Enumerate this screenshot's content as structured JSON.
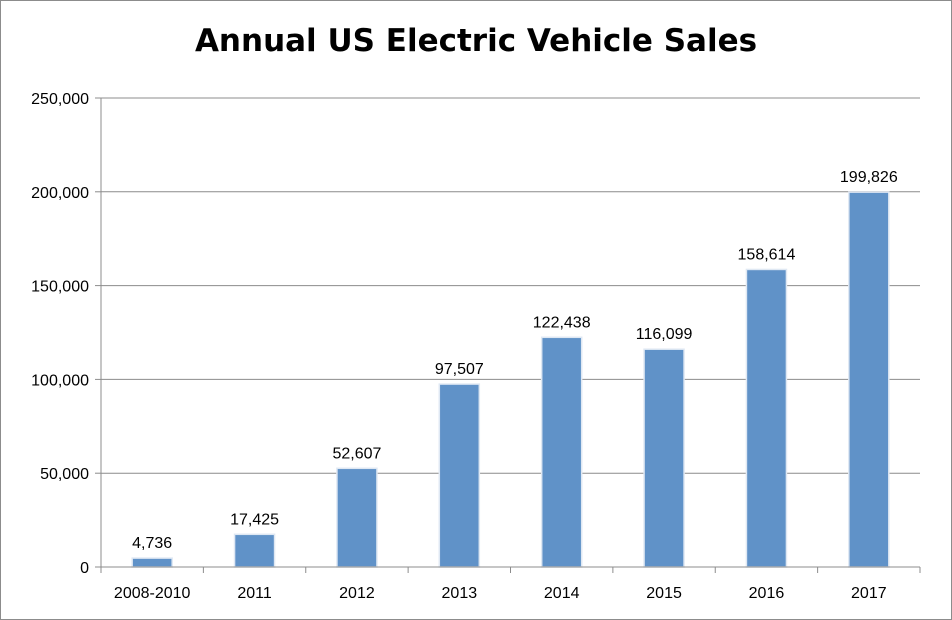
{
  "chart_data": {
    "type": "bar",
    "title": "Annual US Electric Vehicle Sales",
    "xlabel": "",
    "ylabel": "",
    "categories": [
      "2008-2010",
      "2011",
      "2012",
      "2013",
      "2014",
      "2015",
      "2016",
      "2017"
    ],
    "values": [
      4736,
      17425,
      52607,
      97507,
      122438,
      116099,
      158614,
      199826
    ],
    "data_labels": [
      "4,736",
      "17,425",
      "52,607",
      "97,507",
      "122,438",
      "116,099",
      "158,614",
      "199,826"
    ],
    "ylim": [
      0,
      250000
    ],
    "y_ticks": [
      0,
      50000,
      100000,
      150000,
      200000,
      250000
    ],
    "y_tick_labels": [
      "0",
      "50,000",
      "100,000",
      "150,000",
      "200,000",
      "250,000"
    ],
    "grid": true,
    "legend": "none",
    "colors": {
      "bar": "#6092c8",
      "bar_edge": "#dfe8f3",
      "grid": "#8c8c8c",
      "axis": "#8c8c8c"
    }
  }
}
